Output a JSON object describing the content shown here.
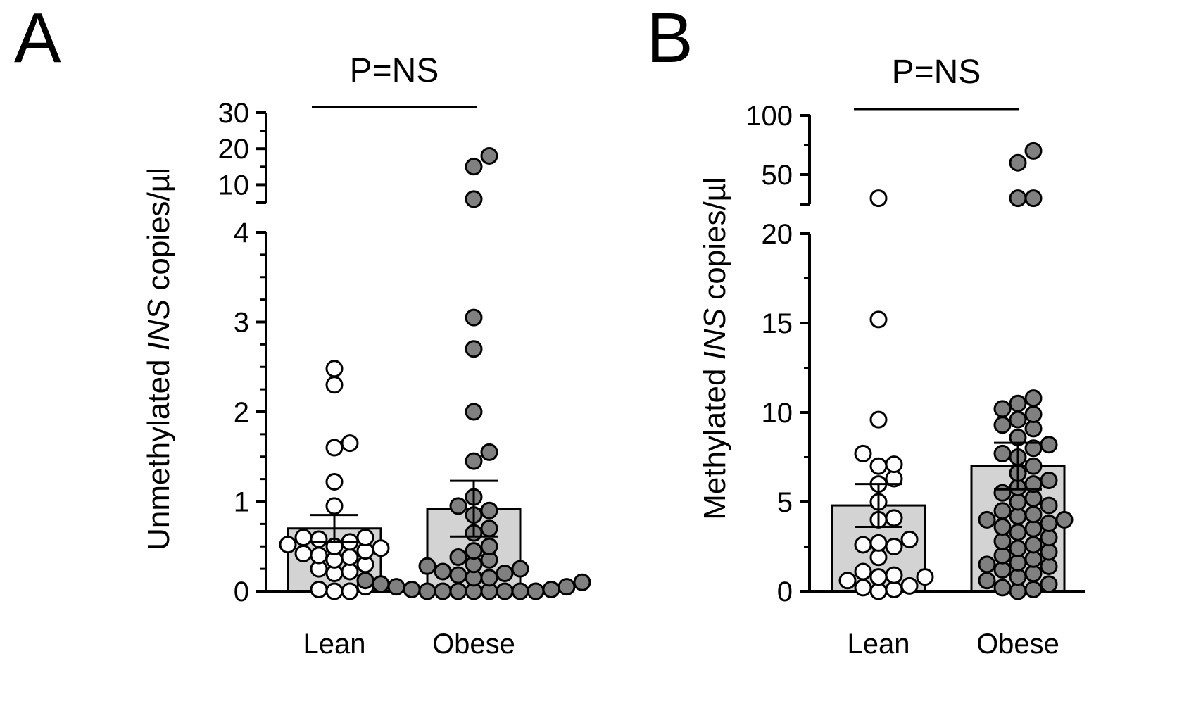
{
  "colors": {
    "bar_fill": "#d3d3d3",
    "lean_point_fill": "#ffffff",
    "obese_point_fill": "#808080",
    "stroke": "#000000"
  },
  "chart_data": [
    {
      "type": "bar",
      "panel_label": "A",
      "significance": "P=NS",
      "ylabel": {
        "prefix": "Unmethylated ",
        "italic": "INS",
        "suffix": " copies/µl"
      },
      "axis_break": true,
      "lower_segment": {
        "ylim": [
          0,
          4
        ],
        "ticks": [
          0,
          1,
          2,
          3,
          4
        ],
        "minor_step": 0.25
      },
      "upper_segment": {
        "ylim": [
          5,
          30
        ],
        "ticks": [
          10,
          20,
          30
        ],
        "minor_step": 5
      },
      "categories": [
        "Lean",
        "Obese"
      ],
      "series": [
        {
          "name": "Lean",
          "mean": 0.7,
          "sem": 0.15,
          "points": [
            2.48,
            2.3,
            1.65,
            1.6,
            1.22,
            0.95,
            0.6,
            0.6,
            0.58,
            0.55,
            0.52,
            0.5,
            0.48,
            0.45,
            0.42,
            0.4,
            0.38,
            0.35,
            0.3,
            0.25,
            0.22,
            0.2,
            0.05,
            0.02,
            0.0,
            0.0
          ]
        },
        {
          "name": "Obese",
          "mean": 0.92,
          "sem": 0.31,
          "points": [
            18,
            15,
            6,
            3.05,
            2.7,
            2.0,
            1.55,
            1.45,
            1.05,
            0.95,
            0.9,
            0.85,
            0.7,
            0.65,
            0.5,
            0.45,
            0.38,
            0.35,
            0.3,
            0.28,
            0.25,
            0.22,
            0.2,
            0.18,
            0.15,
            0.15,
            0.12,
            0.1,
            0.08,
            0.05,
            0.05,
            0.02,
            0.02,
            0.0,
            0.0,
            0.0,
            0.0,
            0.0,
            0.0,
            0.0,
            0.0
          ]
        }
      ]
    },
    {
      "type": "bar",
      "panel_label": "B",
      "significance": "P=NS",
      "ylabel": {
        "prefix": "Methylated ",
        "italic": "INS",
        "suffix": " copies/µl"
      },
      "axis_break": true,
      "lower_segment": {
        "ylim": [
          0,
          20
        ],
        "ticks": [
          0,
          5,
          10,
          15,
          20
        ],
        "minor_step": 2.5
      },
      "upper_segment": {
        "ylim": [
          25,
          100
        ],
        "ticks": [
          50,
          100
        ],
        "minor_step": 25
      },
      "categories": [
        "Lean",
        "Obese"
      ],
      "series": [
        {
          "name": "Lean",
          "mean": 4.8,
          "sem": 1.2,
          "points": [
            30,
            15.2,
            9.6,
            7.7,
            7.1,
            7.0,
            6.3,
            6.0,
            5.0,
            4.1,
            4.0,
            2.9,
            2.7,
            2.6,
            2.5,
            1.9,
            1.1,
            0.9,
            0.8,
            0.8,
            0.6,
            0.3,
            0.2,
            0.1,
            0.0
          ]
        },
        {
          "name": "Obese",
          "mean": 7.0,
          "sem": 1.3,
          "points": [
            70,
            60,
            30,
            30,
            10.8,
            10.5,
            10.2,
            9.9,
            9.6,
            9.3,
            9.1,
            8.6,
            8.2,
            8.0,
            7.7,
            7.5,
            7.0,
            6.6,
            6.2,
            6.0,
            5.8,
            5.5,
            5.2,
            5.0,
            4.8,
            4.5,
            4.3,
            4.2,
            4.0,
            4.0,
            3.8,
            3.6,
            3.5,
            3.3,
            3.0,
            2.8,
            2.6,
            2.4,
            2.2,
            2.0,
            1.8,
            1.6,
            1.5,
            1.4,
            1.2,
            1.0,
            0.8,
            0.6,
            0.4,
            0.2,
            0.1,
            0.0
          ]
        }
      ]
    }
  ]
}
